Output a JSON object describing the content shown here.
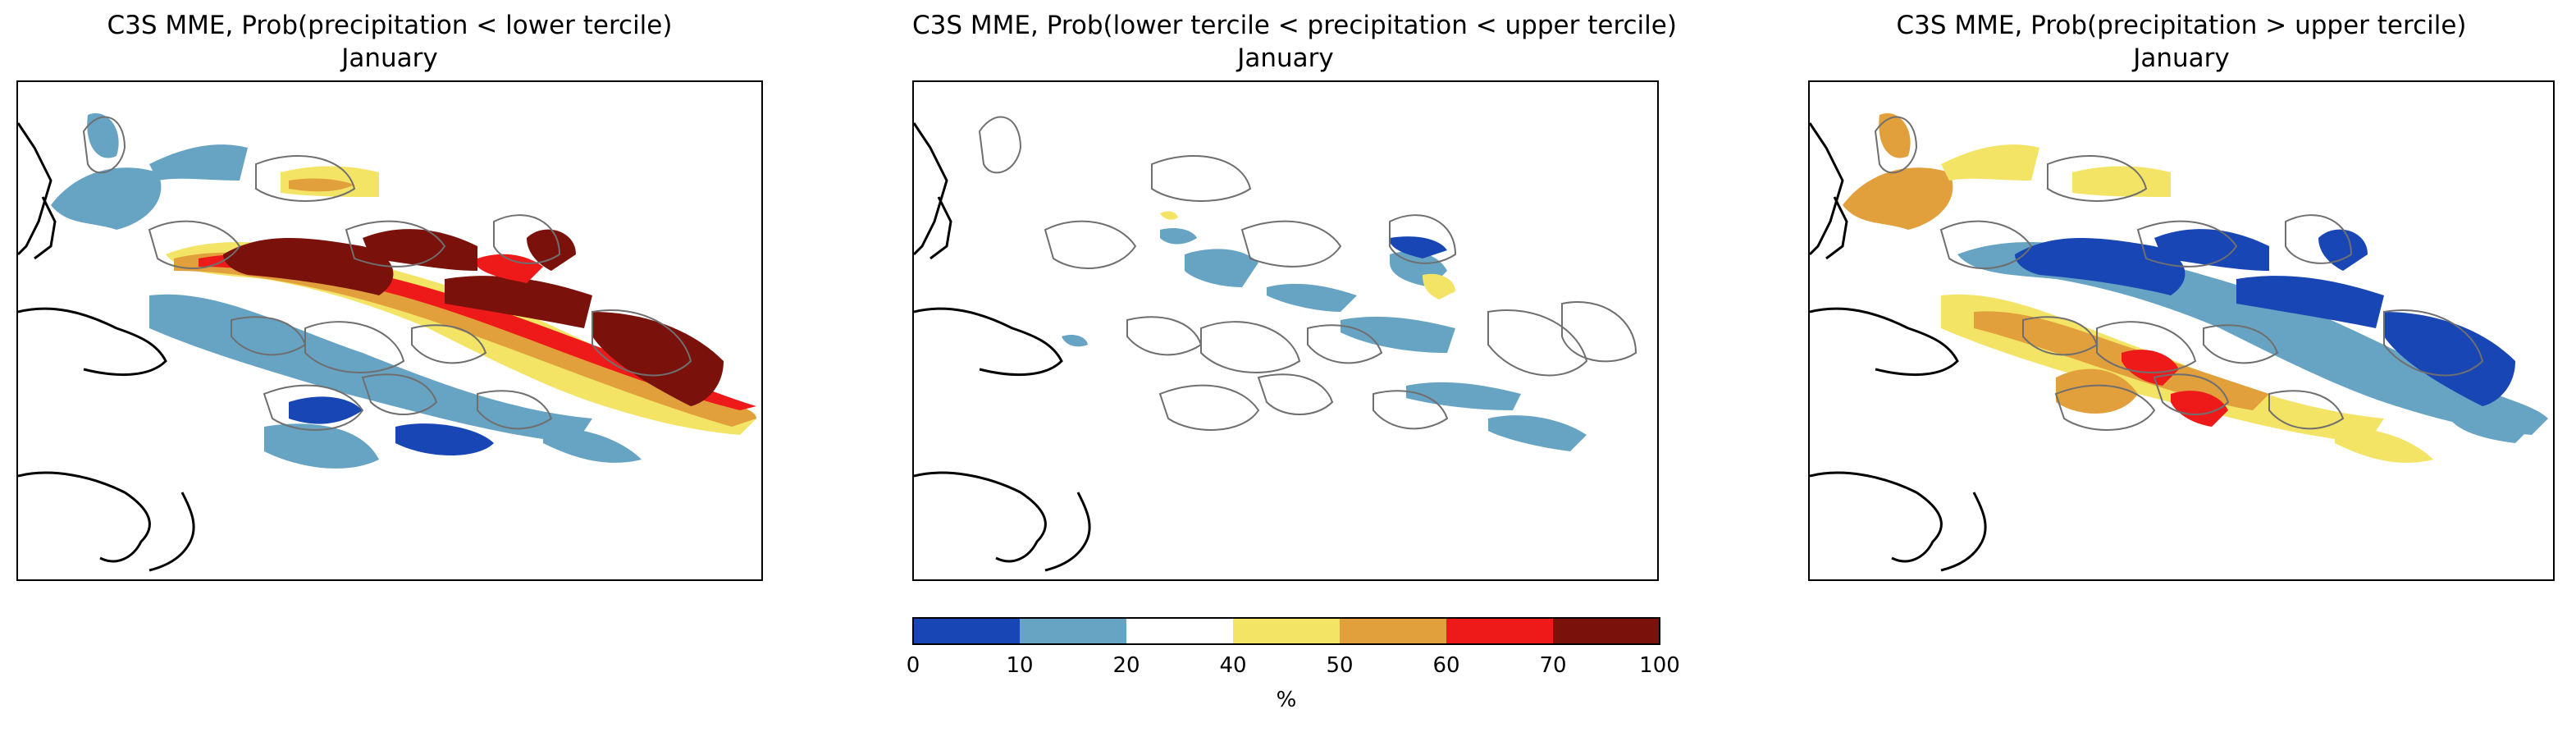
{
  "panels": [
    {
      "title": "C3S MME, Prob(precipitation < lower tercile)",
      "subtitle": "January",
      "palette": [
        "#7a120b",
        "#ee1a1a",
        "#e2a03d",
        "#f3e466"
      ]
    },
    {
      "title": "C3S MME, Prob(lower tercile < precipitation < upper tercile)",
      "subtitle": "January",
      "palette": [
        "#1846b4",
        "#67a4c4",
        "#f3e466"
      ]
    },
    {
      "title": "C3S MME, Prob(precipitation > upper tercile)",
      "subtitle": "January",
      "palette": [
        "#1846b4",
        "#67a4c4",
        "#e2a03d",
        "#ee1a1a",
        "#f3e466"
      ]
    }
  ],
  "colorbar": {
    "ticks": [
      "0",
      "10",
      "20",
      "40",
      "50",
      "60",
      "70",
      "100"
    ],
    "unit": "%",
    "colors": [
      "#1846b4",
      "#67a4c4",
      "#ffffff",
      "#f3e466",
      "#e2a03d",
      "#ee1a1a",
      "#7a120b"
    ]
  }
}
